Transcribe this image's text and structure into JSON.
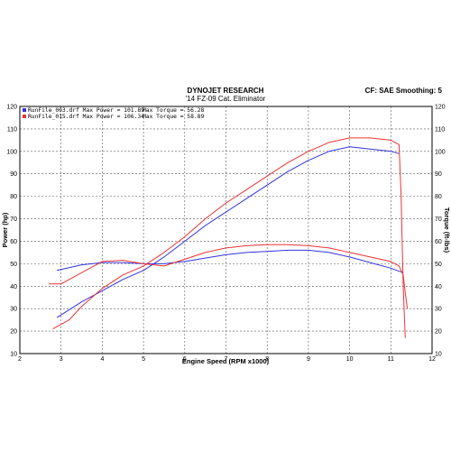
{
  "header": {
    "title": "DYNOJET RESEARCH",
    "subtitle": "'14 FZ-09 Cat. Eliminator",
    "settings": "CF: SAE  Smoothing: 5"
  },
  "legend": [
    {
      "file": "RunFile_003.drf",
      "max_power_label": "Max Power = 101.89",
      "max_torque_label": "Max Torque = 56.28",
      "color": "#3333dd"
    },
    {
      "file": "RunFile_015.drf",
      "max_power_label": "Max Power = 106.34",
      "max_torque_label": "Max Torque = 58.89",
      "color": "#ee3333"
    }
  ],
  "chart_data": {
    "type": "line",
    "title": "DYNOJET RESEARCH",
    "xlabel": "Engine Speed (RPM x1000)",
    "ylabel_left": "Power (hp)",
    "ylabel_right": "Torque (ft-lbs)",
    "xlim": [
      2,
      12
    ],
    "ylim": [
      10,
      120
    ],
    "x_ticks": [
      2,
      3,
      4,
      5,
      6,
      7,
      8,
      9,
      10,
      11,
      12
    ],
    "y_ticks": [
      10,
      20,
      30,
      40,
      50,
      60,
      70,
      80,
      90,
      100,
      110,
      120
    ],
    "grid": true,
    "series": [
      {
        "name": "RunFile_003.drf",
        "quantity": "Power",
        "color": "#3333dd",
        "x": [
          2.9,
          3.5,
          4.0,
          4.5,
          5.0,
          5.5,
          6.0,
          6.5,
          7.0,
          7.5,
          8.0,
          8.5,
          9.0,
          9.5,
          10.0,
          10.5,
          11.0,
          11.2
        ],
        "y": [
          26,
          33,
          38,
          43,
          47,
          53,
          60,
          67,
          73,
          79,
          85,
          91,
          96,
          100,
          102,
          101,
          100,
          99
        ]
      },
      {
        "name": "RunFile_015.drf",
        "quantity": "Power",
        "color": "#ee3333",
        "x": [
          2.8,
          3.2,
          3.5,
          4.0,
          4.5,
          5.0,
          5.5,
          6.0,
          6.5,
          7.0,
          7.5,
          8.0,
          8.5,
          9.0,
          9.5,
          10.0,
          10.5,
          11.0,
          11.2,
          11.25,
          11.3,
          11.35
        ],
        "y": [
          21,
          25,
          31,
          39,
          45,
          49,
          55,
          62,
          70,
          77,
          83,
          89,
          95,
          100,
          104,
          106,
          106,
          105,
          103,
          80,
          40,
          17
        ]
      },
      {
        "name": "RunFile_003.drf",
        "quantity": "Torque",
        "color": "#3333dd",
        "x": [
          2.9,
          3.5,
          4.0,
          4.5,
          5.0,
          5.5,
          6.0,
          6.5,
          7.0,
          7.5,
          8.0,
          8.5,
          9.0,
          9.5,
          10.0,
          10.5,
          11.0,
          11.3
        ],
        "y": [
          47,
          49.5,
          50.5,
          50.5,
          50,
          50,
          51,
          52.5,
          54,
          55,
          55.5,
          56,
          56,
          55,
          53,
          50.5,
          48,
          46
        ]
      },
      {
        "name": "RunFile_015.drf",
        "quantity": "Torque",
        "color": "#ee3333",
        "x": [
          2.7,
          3.0,
          3.5,
          4.0,
          4.5,
          5.0,
          5.5,
          6.0,
          6.5,
          7.0,
          7.5,
          8.0,
          8.5,
          9.0,
          9.5,
          10.0,
          10.5,
          11.0,
          11.2,
          11.3,
          11.35,
          11.4
        ],
        "y": [
          41,
          41,
          46,
          51,
          51.5,
          50,
          49,
          52,
          55,
          57,
          58,
          58.5,
          58.5,
          58,
          57,
          55,
          53,
          51,
          49,
          45,
          37,
          30
        ]
      }
    ]
  }
}
